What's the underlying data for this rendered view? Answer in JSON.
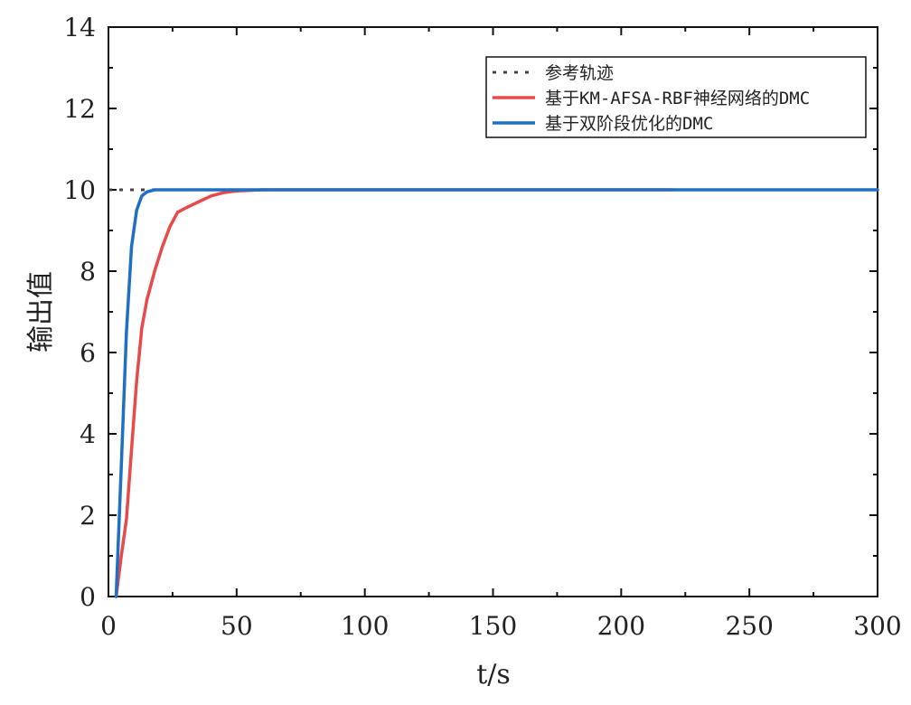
{
  "chart_data": {
    "type": "line",
    "xlabel": "t/s",
    "ylabel": "输出值",
    "xlim": [
      0,
      300
    ],
    "ylim": [
      0,
      14
    ],
    "xticks": [
      0,
      50,
      100,
      150,
      200,
      250,
      300
    ],
    "yticks": [
      0,
      2,
      4,
      6,
      8,
      10,
      12,
      14
    ],
    "grid": false,
    "legend_position": "top-right",
    "series": [
      {
        "name": "参考轨迹",
        "color": "#444444",
        "style": "dotted",
        "x": [
          0,
          300
        ],
        "y": [
          10,
          10
        ]
      },
      {
        "name": "基于KM-AFSA-RBF神经网络的DMC",
        "color": "#e84a4a",
        "style": "solid",
        "x": [
          3,
          5,
          7,
          9,
          11,
          13,
          15,
          18,
          21,
          24,
          27,
          30,
          35,
          40,
          45,
          50,
          60,
          80,
          100,
          150,
          220
        ],
        "y": [
          0,
          1.0,
          1.9,
          3.6,
          5.3,
          6.6,
          7.3,
          8.0,
          8.6,
          9.1,
          9.45,
          9.55,
          9.7,
          9.85,
          9.93,
          9.97,
          10.0,
          10.0,
          10.0,
          10.0,
          10.0
        ]
      },
      {
        "name": "基于双阶段优化的DMC",
        "color": "#1f6fc4",
        "style": "solid",
        "x": [
          3,
          5,
          7,
          9,
          11,
          13,
          15,
          18,
          22,
          30,
          50,
          100,
          200,
          300
        ],
        "y": [
          0,
          3.2,
          6.5,
          8.6,
          9.5,
          9.85,
          9.95,
          10.0,
          10.0,
          10.0,
          10.0,
          10.0,
          10.0,
          10.0
        ]
      }
    ]
  }
}
